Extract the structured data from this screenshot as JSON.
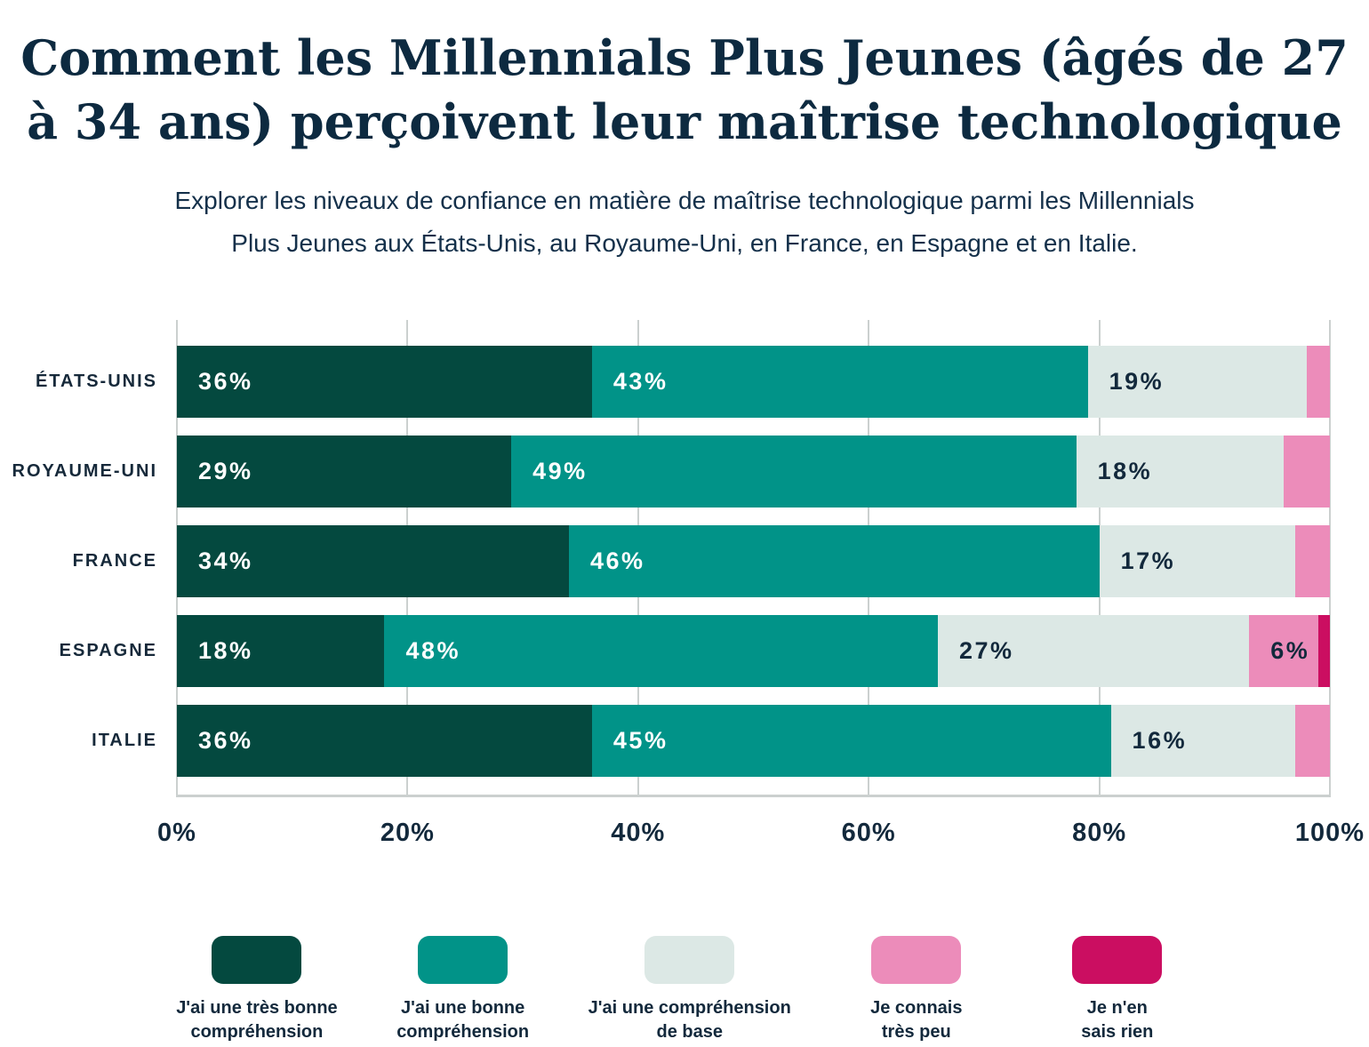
{
  "title": "Comment les Millennials Plus Jeunes (âgés de 27 à 34 ans) perçoivent leur maîtrise technologique",
  "title_lines": [
    "Comment les Millennials Plus Jeunes (âgés de 27",
    "à 34 ans) perçoivent leur maîtrise technologique"
  ],
  "subtitle": "Explorer les niveaux de confiance en matière de maîtrise technologique parmi les Millennials Plus Jeunes aux États-Unis, au Royaume-Uni, en France, en Espagne et en Italie.",
  "subtitle_lines": [
    "Explorer les niveaux de confiance en matière de maîtrise technologique parmi les Millennials",
    "Plus Jeunes aux États-Unis, au Royaume-Uni, en France, en Espagne et en Italie."
  ],
  "colors": {
    "text": "#0f2a3e",
    "grid": "#cbd0cf",
    "background": "#ffffff"
  },
  "chart_data": {
    "type": "bar",
    "orientation": "horizontal-stacked",
    "title": "Comment les Millennials Plus Jeunes (âgés de 27 à 34 ans) perçoivent leur maîtrise technologique",
    "categories": [
      "ÉTATS-UNIS",
      "ROYAUME-UNI",
      "FRANCE",
      "ESPAGNE",
      "ITALIE"
    ],
    "series": [
      {
        "name": "J'ai une très bonne compréhension",
        "legend_lines": [
          "J'ai une très bonne",
          "compréhension"
        ],
        "color": "#04493f",
        "label_color": "#ffffff",
        "values": [
          36,
          29,
          34,
          18,
          36
        ]
      },
      {
        "name": "J'ai une bonne compréhension",
        "legend_lines": [
          "J'ai une bonne",
          "compréhension"
        ],
        "color": "#019388",
        "label_color": "#ffffff",
        "values": [
          43,
          49,
          46,
          48,
          45
        ]
      },
      {
        "name": "J'ai une compréhension de base",
        "legend_lines": [
          "J'ai une compréhension",
          "de base"
        ],
        "color": "#dce8e5",
        "label_color": "#13293c",
        "values": [
          19,
          18,
          17,
          27,
          16
        ]
      },
      {
        "name": "Je connais très peu",
        "legend_lines": [
          "Je connais",
          "très peu"
        ],
        "color": "#ec8cba",
        "label_color": "#13293c",
        "values": [
          2,
          4,
          3,
          6,
          3
        ]
      },
      {
        "name": "Je n'en sais rien",
        "legend_lines": [
          "Je n'en",
          "sais rien"
        ],
        "color": "#cb0e61",
        "label_color": "#ffffff",
        "values": [
          0,
          0,
          0,
          1,
          0
        ]
      }
    ],
    "x_ticks": [
      "0%",
      "20%",
      "40%",
      "60%",
      "80%",
      "100%"
    ],
    "xlim": [
      0,
      100
    ],
    "grid": true,
    "value_suffix": "%",
    "min_label_value": 6,
    "legend_position": "bottom"
  }
}
